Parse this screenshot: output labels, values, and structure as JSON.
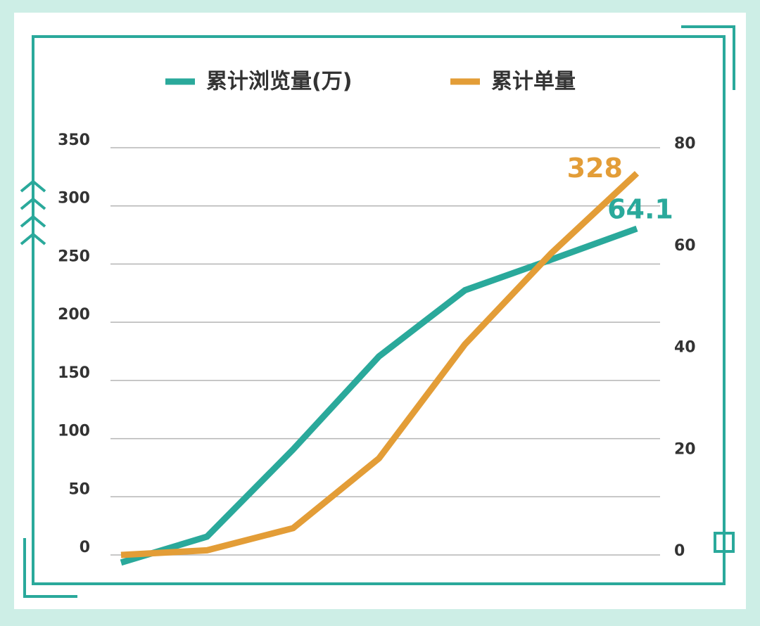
{
  "chart_data": {
    "type": "line",
    "categories": [
      null,
      null,
      null,
      null,
      null,
      null,
      null
    ],
    "series": [
      {
        "name": "累计浏览量(万)",
        "color": "#2aa99b",
        "axis": "y2",
        "values": [
          -1.5,
          3.6,
          20.7,
          39,
          52,
          58,
          64.1
        ]
      },
      {
        "name": "累计单量",
        "color": "#e39d37",
        "values": [
          0,
          4,
          23,
          83,
          181,
          259,
          328
        ]
      }
    ],
    "ylim": [
      0,
      350
    ],
    "yticks": [
      0,
      50,
      100,
      150,
      200,
      250,
      300,
      350
    ],
    "y2lim": [
      0,
      80
    ],
    "y2ticks": [
      0,
      20,
      40,
      60,
      80
    ],
    "grid": true,
    "legend": "top"
  }
}
